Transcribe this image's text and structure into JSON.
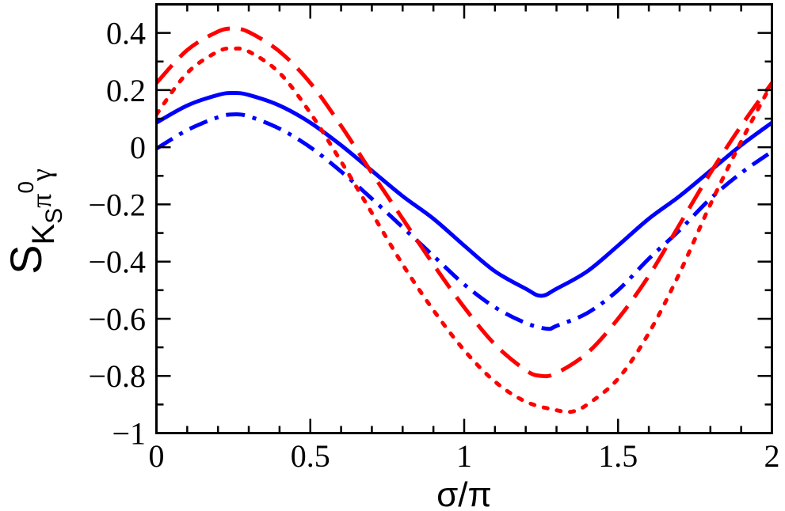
{
  "chart_data": {
    "type": "line",
    "title": "",
    "xlabel": "σ/π",
    "ylabel": {
      "main": "S",
      "sub1": "K",
      "sub1_sub": "S",
      "sub2": "π",
      "sub2_sup": "0",
      "sub3": "γ"
    },
    "xlim": [
      0,
      2
    ],
    "ylim": [
      -1,
      0.5
    ],
    "grid": false,
    "x_ticks": [
      0,
      0.5,
      1,
      1.5,
      2
    ],
    "x_tick_labels": [
      "0",
      "0.5",
      "1",
      "1.5",
      "2"
    ],
    "y_ticks": [
      -1,
      -0.8,
      -0.6,
      -0.4,
      -0.2,
      0,
      0.2,
      0.4
    ],
    "y_tick_labels": [
      "−1",
      "−0.8",
      "−0.6",
      "−0.4",
      "−0.2",
      "0",
      "0.2",
      "0.4"
    ],
    "series": [
      {
        "name": "solid blue",
        "color": "#0000ff",
        "dash": "solid",
        "x": [
          0,
          0.1,
          0.2,
          0.25,
          0.3,
          0.4,
          0.5,
          0.6,
          0.7,
          0.8,
          0.9,
          1.0,
          1.1,
          1.2,
          1.25,
          1.3,
          1.4,
          1.5,
          1.6,
          1.7,
          1.8,
          1.9,
          2.0
        ],
        "values": [
          0.086,
          0.146,
          0.183,
          0.19,
          0.183,
          0.146,
          0.086,
          0.007,
          -0.082,
          -0.171,
          -0.25,
          -0.344,
          -0.434,
          -0.495,
          -0.52,
          -0.495,
          -0.434,
          -0.344,
          -0.25,
          -0.171,
          -0.082,
          0.007,
          0.086
        ]
      },
      {
        "name": "dash-dot blue",
        "color": "#0000ff",
        "dash": "dashdot",
        "x": [
          0,
          0.1,
          0.2,
          0.25,
          0.3,
          0.4,
          0.5,
          0.6,
          0.7,
          0.8,
          0.9,
          1.0,
          1.1,
          1.2,
          1.27,
          1.3,
          1.4,
          1.5,
          1.6,
          1.7,
          1.8,
          1.9,
          2.0
        ],
        "values": [
          -0.005,
          0.06,
          0.105,
          0.115,
          0.108,
          0.065,
          0.0,
          -0.085,
          -0.18,
          -0.28,
          -0.38,
          -0.48,
          -0.56,
          -0.615,
          -0.635,
          -0.625,
          -0.58,
          -0.5,
          -0.39,
          -0.29,
          -0.18,
          -0.09,
          -0.015
        ]
      },
      {
        "name": "dashed red",
        "color": "#ff0000",
        "dash": "dashed",
        "x": [
          0,
          0.1,
          0.2,
          0.25,
          0.3,
          0.4,
          0.5,
          0.6,
          0.7,
          0.8,
          0.9,
          1.0,
          1.1,
          1.2,
          1.25,
          1.3,
          1.4,
          1.5,
          1.6,
          1.7,
          1.8,
          1.9,
          2.0
        ],
        "values": [
          0.225,
          0.34,
          0.405,
          0.415,
          0.403,
          0.335,
          0.225,
          0.075,
          -0.09,
          -0.25,
          -0.41,
          -0.56,
          -0.69,
          -0.78,
          -0.8,
          -0.79,
          -0.72,
          -0.6,
          -0.45,
          -0.27,
          -0.09,
          0.075,
          0.225
        ]
      },
      {
        "name": "dotted red",
        "color": "#ff0000",
        "dash": "dotted",
        "x": [
          0,
          0.1,
          0.2,
          0.25,
          0.3,
          0.4,
          0.5,
          0.6,
          0.7,
          0.8,
          0.9,
          1.0,
          1.1,
          1.2,
          1.3,
          1.35,
          1.4,
          1.5,
          1.6,
          1.7,
          1.8,
          1.9,
          2.0
        ],
        "values": [
          0.115,
          0.26,
          0.335,
          0.345,
          0.335,
          0.26,
          0.12,
          -0.05,
          -0.23,
          -0.41,
          -0.57,
          -0.71,
          -0.82,
          -0.89,
          -0.92,
          -0.925,
          -0.9,
          -0.81,
          -0.65,
          -0.44,
          -0.2,
          0.02,
          0.225
        ]
      }
    ]
  }
}
